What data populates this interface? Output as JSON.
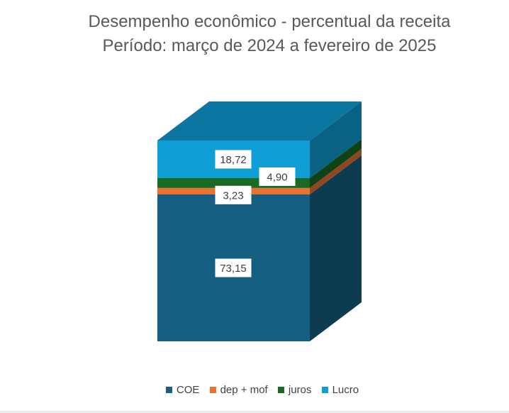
{
  "chart_data": {
    "type": "bar",
    "stacked": true,
    "view": "3d",
    "title": "Desempenho econômico - percentual da receita",
    "subtitle": "Período: março de 2024 a fevereiro de 2025",
    "categories": [
      ""
    ],
    "series": [
      {
        "name": "COE",
        "values": [
          73.15
        ],
        "label": "73,15",
        "color": "#156082"
      },
      {
        "name": "dep + mof",
        "values": [
          3.23
        ],
        "label": "3,23",
        "color": "#E97132"
      },
      {
        "name": "juros",
        "values": [
          4.9
        ],
        "label": "4,90",
        "color": "#196B24"
      },
      {
        "name": "Lucro",
        "values": [
          18.72
        ],
        "label": "18,72",
        "color": "#0F9ED5"
      }
    ],
    "ylim": [
      0,
      100
    ],
    "legend_position": "bottom",
    "grid": false
  }
}
